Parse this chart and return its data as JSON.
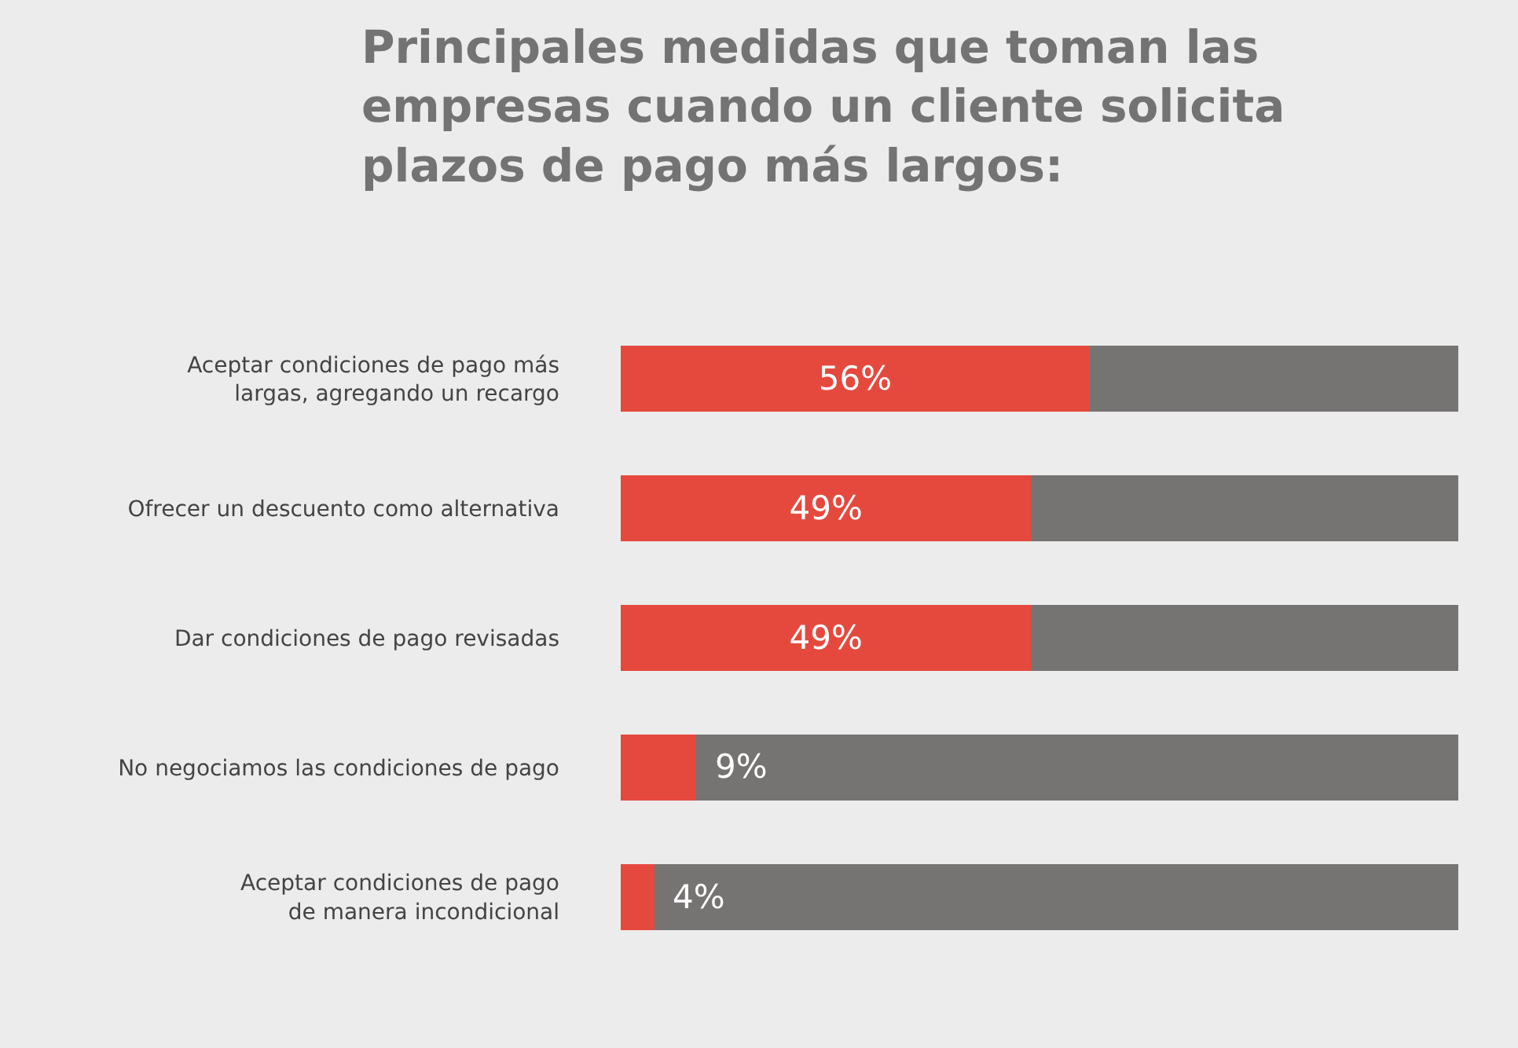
{
  "chart_data": {
    "type": "bar",
    "orientation": "horizontal",
    "stacked": true,
    "title": "Principales medidas que toman las\nempresas cuando un cliente solicita\nplazos de pago más largos:",
    "categories": [
      "Aceptar condiciones de pago más\nlargas, agregando un recargo",
      "Ofrecer un descuento como alternativa",
      "Dar condiciones de pago revisadas",
      "No negociamos las condiciones de pago",
      "Aceptar condiciones de pago\nde manera incondicional"
    ],
    "series": [
      {
        "color": "#e5493e",
        "values": [
          56,
          49,
          49,
          9,
          4
        ],
        "value_labels": [
          "56%",
          "49%",
          "49%",
          "9%",
          "4%"
        ]
      },
      {
        "color": "#767373",
        "values": [
          44,
          51,
          51,
          91,
          96
        ]
      }
    ],
    "xlim": [
      0,
      100
    ],
    "tick_labels": "y",
    "legend": false
  }
}
